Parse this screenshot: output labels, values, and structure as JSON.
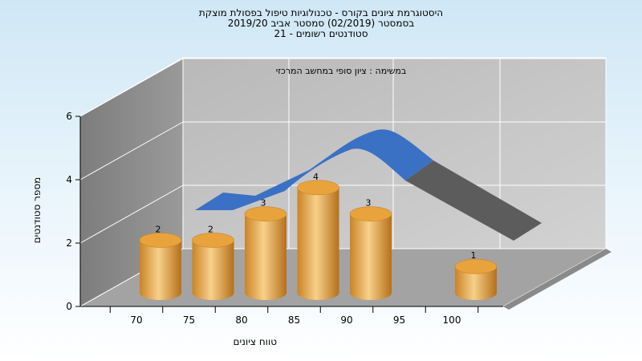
{
  "chart_data": {
    "type": "bar",
    "title_lines": [
      "היסטוגרמת ציונים בקורס - טכנולוגיות טיפול בפסולת מוצקת",
      "בסמסטר  (02/2019)  סמסטר אביב 2019/20",
      "סטודנטים רשומים - 21"
    ],
    "annotation": "במשימה : ציון סופי במחשב המרכזי",
    "categories": [
      "70",
      "75",
      "80",
      "85",
      "90",
      "95",
      "100"
    ],
    "values": [
      2,
      2,
      3,
      4,
      3,
      0,
      1
    ],
    "data_labels": [
      "2",
      "2",
      "3",
      "4",
      "3",
      "",
      "1"
    ],
    "xlabel": "טווח ציונים",
    "ylabel": "מספר סטודנטים",
    "ylim": [
      0,
      6
    ],
    "yticks": [
      "0",
      "2",
      "4",
      "6"
    ],
    "grid": true,
    "colors": {
      "bar": "#e8a33c",
      "bar_light": "#f7cd7e",
      "bar_dark": "#b8741e",
      "curve_top": "#3a6fc2",
      "curve_side": "#5a5a5a",
      "wall": "#c4c4c4",
      "left_wall": "#8c8c8c",
      "floor": "#a6a6a6"
    }
  }
}
